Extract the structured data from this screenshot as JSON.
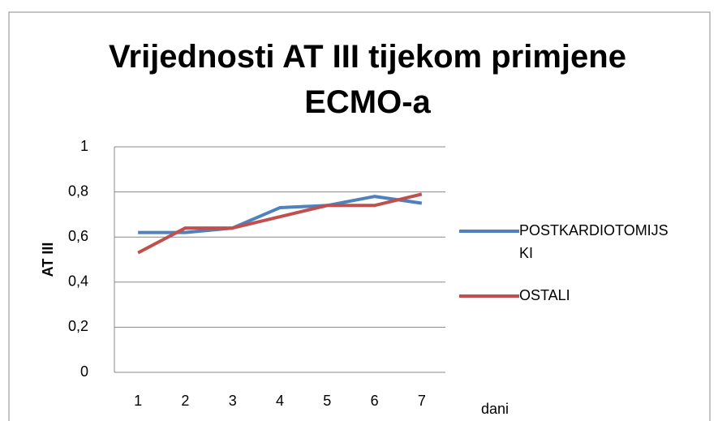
{
  "chart_data": {
    "type": "line",
    "title": "Vrijednosti AT III tijekom primjene ECMO-a",
    "y_label": "AT III",
    "x_label": "dani",
    "categories": [
      "1",
      "2",
      "3",
      "4",
      "5",
      "6",
      "7"
    ],
    "series": [
      {
        "name": "POSTKARDIOTOMIJSKI",
        "color": "#4f81bd",
        "values": [
          0.62,
          0.62,
          0.64,
          0.73,
          0.74,
          0.78,
          0.75
        ]
      },
      {
        "name": "OSTALI",
        "color": "#c0504d",
        "values": [
          0.53,
          0.64,
          0.64,
          0.69,
          0.74,
          0.74,
          0.79
        ]
      }
    ],
    "ylim": [
      0,
      1
    ],
    "yticks": [
      0,
      {
        "value": 0.2,
        "label": "0,2"
      },
      {
        "value": 0.4,
        "label": "0,4"
      },
      {
        "value": 0.6,
        "label": "0,6"
      },
      {
        "value": 0.8,
        "label": "0,8"
      },
      1
    ],
    "grid": true,
    "legend": "right"
  }
}
